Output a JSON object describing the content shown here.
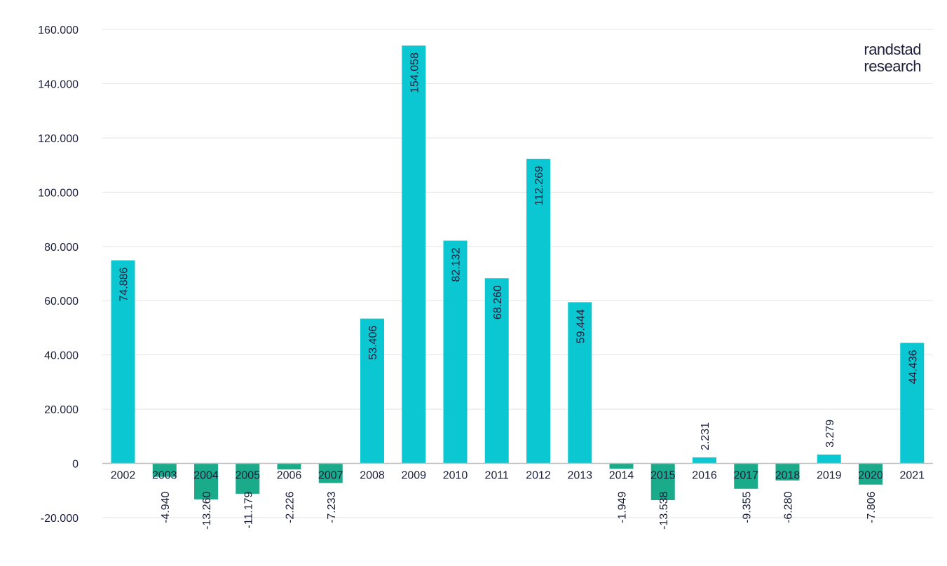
{
  "brand": {
    "line1": "randstad",
    "line2": "research"
  },
  "colors": {
    "positive": "#0bc7d2",
    "negative": "#1aab8a",
    "grid": "#e3e3e3",
    "axis": "#bdbdbd",
    "text": "#1b1f3b"
  },
  "chart_data": {
    "type": "bar",
    "title": "",
    "xlabel": "",
    "ylabel": "",
    "ylim": [
      -20000,
      160000
    ],
    "yticks": [
      -20000,
      0,
      20000,
      40000,
      60000,
      80000,
      100000,
      120000,
      140000,
      160000
    ],
    "ytick_labels": [
      "-20.000",
      "0",
      "20.000",
      "40.000",
      "60.000",
      "80.000",
      "100.000",
      "120.000",
      "140.000",
      "160.000"
    ],
    "grid": true,
    "categories": [
      "2002",
      "2003",
      "2004",
      "2005",
      "2006",
      "2007",
      "2008",
      "2009",
      "2010",
      "2011",
      "2012",
      "2013",
      "2014",
      "2015",
      "2016",
      "2017",
      "2018",
      "2019",
      "2020",
      "2021"
    ],
    "values": [
      74886,
      -4940,
      -13260,
      -11179,
      -2226,
      -7233,
      53406,
      154058,
      82132,
      68260,
      112269,
      59444,
      -1949,
      -13538,
      2231,
      -9355,
      -6280,
      3279,
      -7806,
      44436
    ],
    "data_labels": [
      "74.886",
      "-4.940",
      "-13.260",
      "-11.179",
      "-2.226",
      "-7.233",
      "53.406",
      "154.058",
      "82.132",
      "68.260",
      "112.269",
      "59.444",
      "-1.949",
      "-13.538",
      "2.231",
      "-9.355",
      "-6.280",
      "3.279",
      "-7.806",
      "44.436"
    ]
  }
}
